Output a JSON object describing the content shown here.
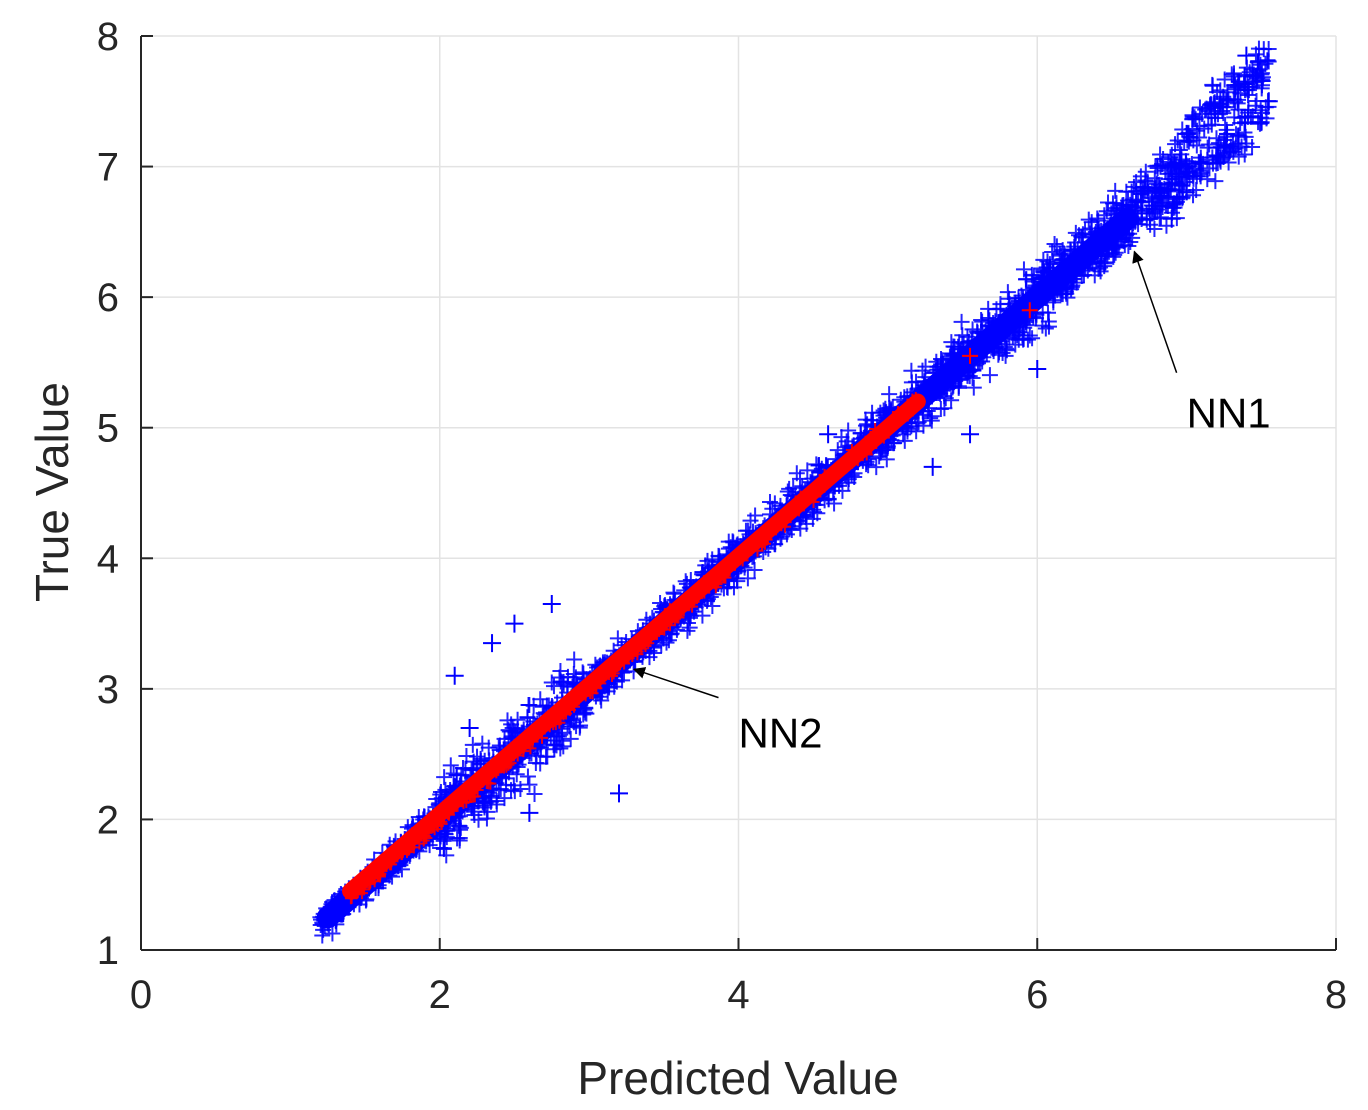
{
  "chart_data": {
    "type": "scatter",
    "xlabel": "Predicted Value",
    "ylabel": "True Value",
    "xlim": [
      0,
      8
    ],
    "ylim": [
      1,
      8
    ],
    "x_ticks": [
      "0",
      "2",
      "4",
      "6",
      "8"
    ],
    "y_ticks": [
      "1",
      "2",
      "3",
      "4",
      "5",
      "6",
      "7",
      "8"
    ],
    "grid": true,
    "marker": "+",
    "series": [
      {
        "color": "#0000ff",
        "x_range": [
          1.2,
          7.55
        ],
        "points": [
          [
            1.25,
            1.27
          ],
          [
            1.6,
            1.55
          ],
          [
            2.0,
            1.95
          ],
          [
            2.5,
            2.45
          ],
          [
            3.0,
            3.0
          ],
          [
            3.5,
            3.5
          ],
          [
            4.0,
            4.0
          ],
          [
            4.5,
            4.5
          ],
          [
            5.0,
            5.05
          ],
          [
            5.5,
            5.55
          ],
          [
            6.0,
            6.0
          ],
          [
            6.5,
            6.5
          ],
          [
            7.0,
            7.0
          ],
          [
            7.4,
            7.85
          ],
          [
            7.55,
            7.5
          ],
          [
            2.1,
            3.1
          ],
          [
            2.2,
            2.7
          ],
          [
            2.35,
            3.35
          ],
          [
            2.5,
            3.5
          ],
          [
            2.75,
            3.65
          ],
          [
            2.6,
            2.05
          ],
          [
            3.2,
            2.2
          ],
          [
            4.6,
            4.95
          ],
          [
            4.55,
            4.5
          ],
          [
            5.3,
            4.7
          ],
          [
            5.55,
            4.95
          ],
          [
            6.0,
            5.45
          ],
          [
            5.95,
            5.95
          ],
          [
            6.9,
            6.6
          ],
          [
            7.0,
            7.25
          ]
        ]
      },
      {
        "color": "#ff0000",
        "x_range": [
          1.4,
          5.95
        ],
        "points": [
          [
            1.4,
            1.45
          ],
          [
            1.8,
            1.82
          ],
          [
            2.2,
            2.2
          ],
          [
            2.6,
            2.6
          ],
          [
            3.0,
            3.0
          ],
          [
            3.4,
            3.42
          ],
          [
            3.8,
            3.8
          ],
          [
            4.2,
            4.2
          ],
          [
            4.6,
            4.6
          ],
          [
            5.0,
            5.0
          ],
          [
            5.2,
            5.2
          ],
          [
            5.55,
            5.55
          ],
          [
            5.95,
            5.9
          ]
        ]
      }
    ],
    "annotations": [
      {
        "text": "NN2",
        "point_to": [
          3.3,
          3.15
        ],
        "text_at": [
          4.0,
          2.55
        ]
      },
      {
        "text": "NN1",
        "point_to": [
          6.65,
          6.35
        ],
        "text_at": [
          7.0,
          5.0
        ]
      }
    ]
  }
}
